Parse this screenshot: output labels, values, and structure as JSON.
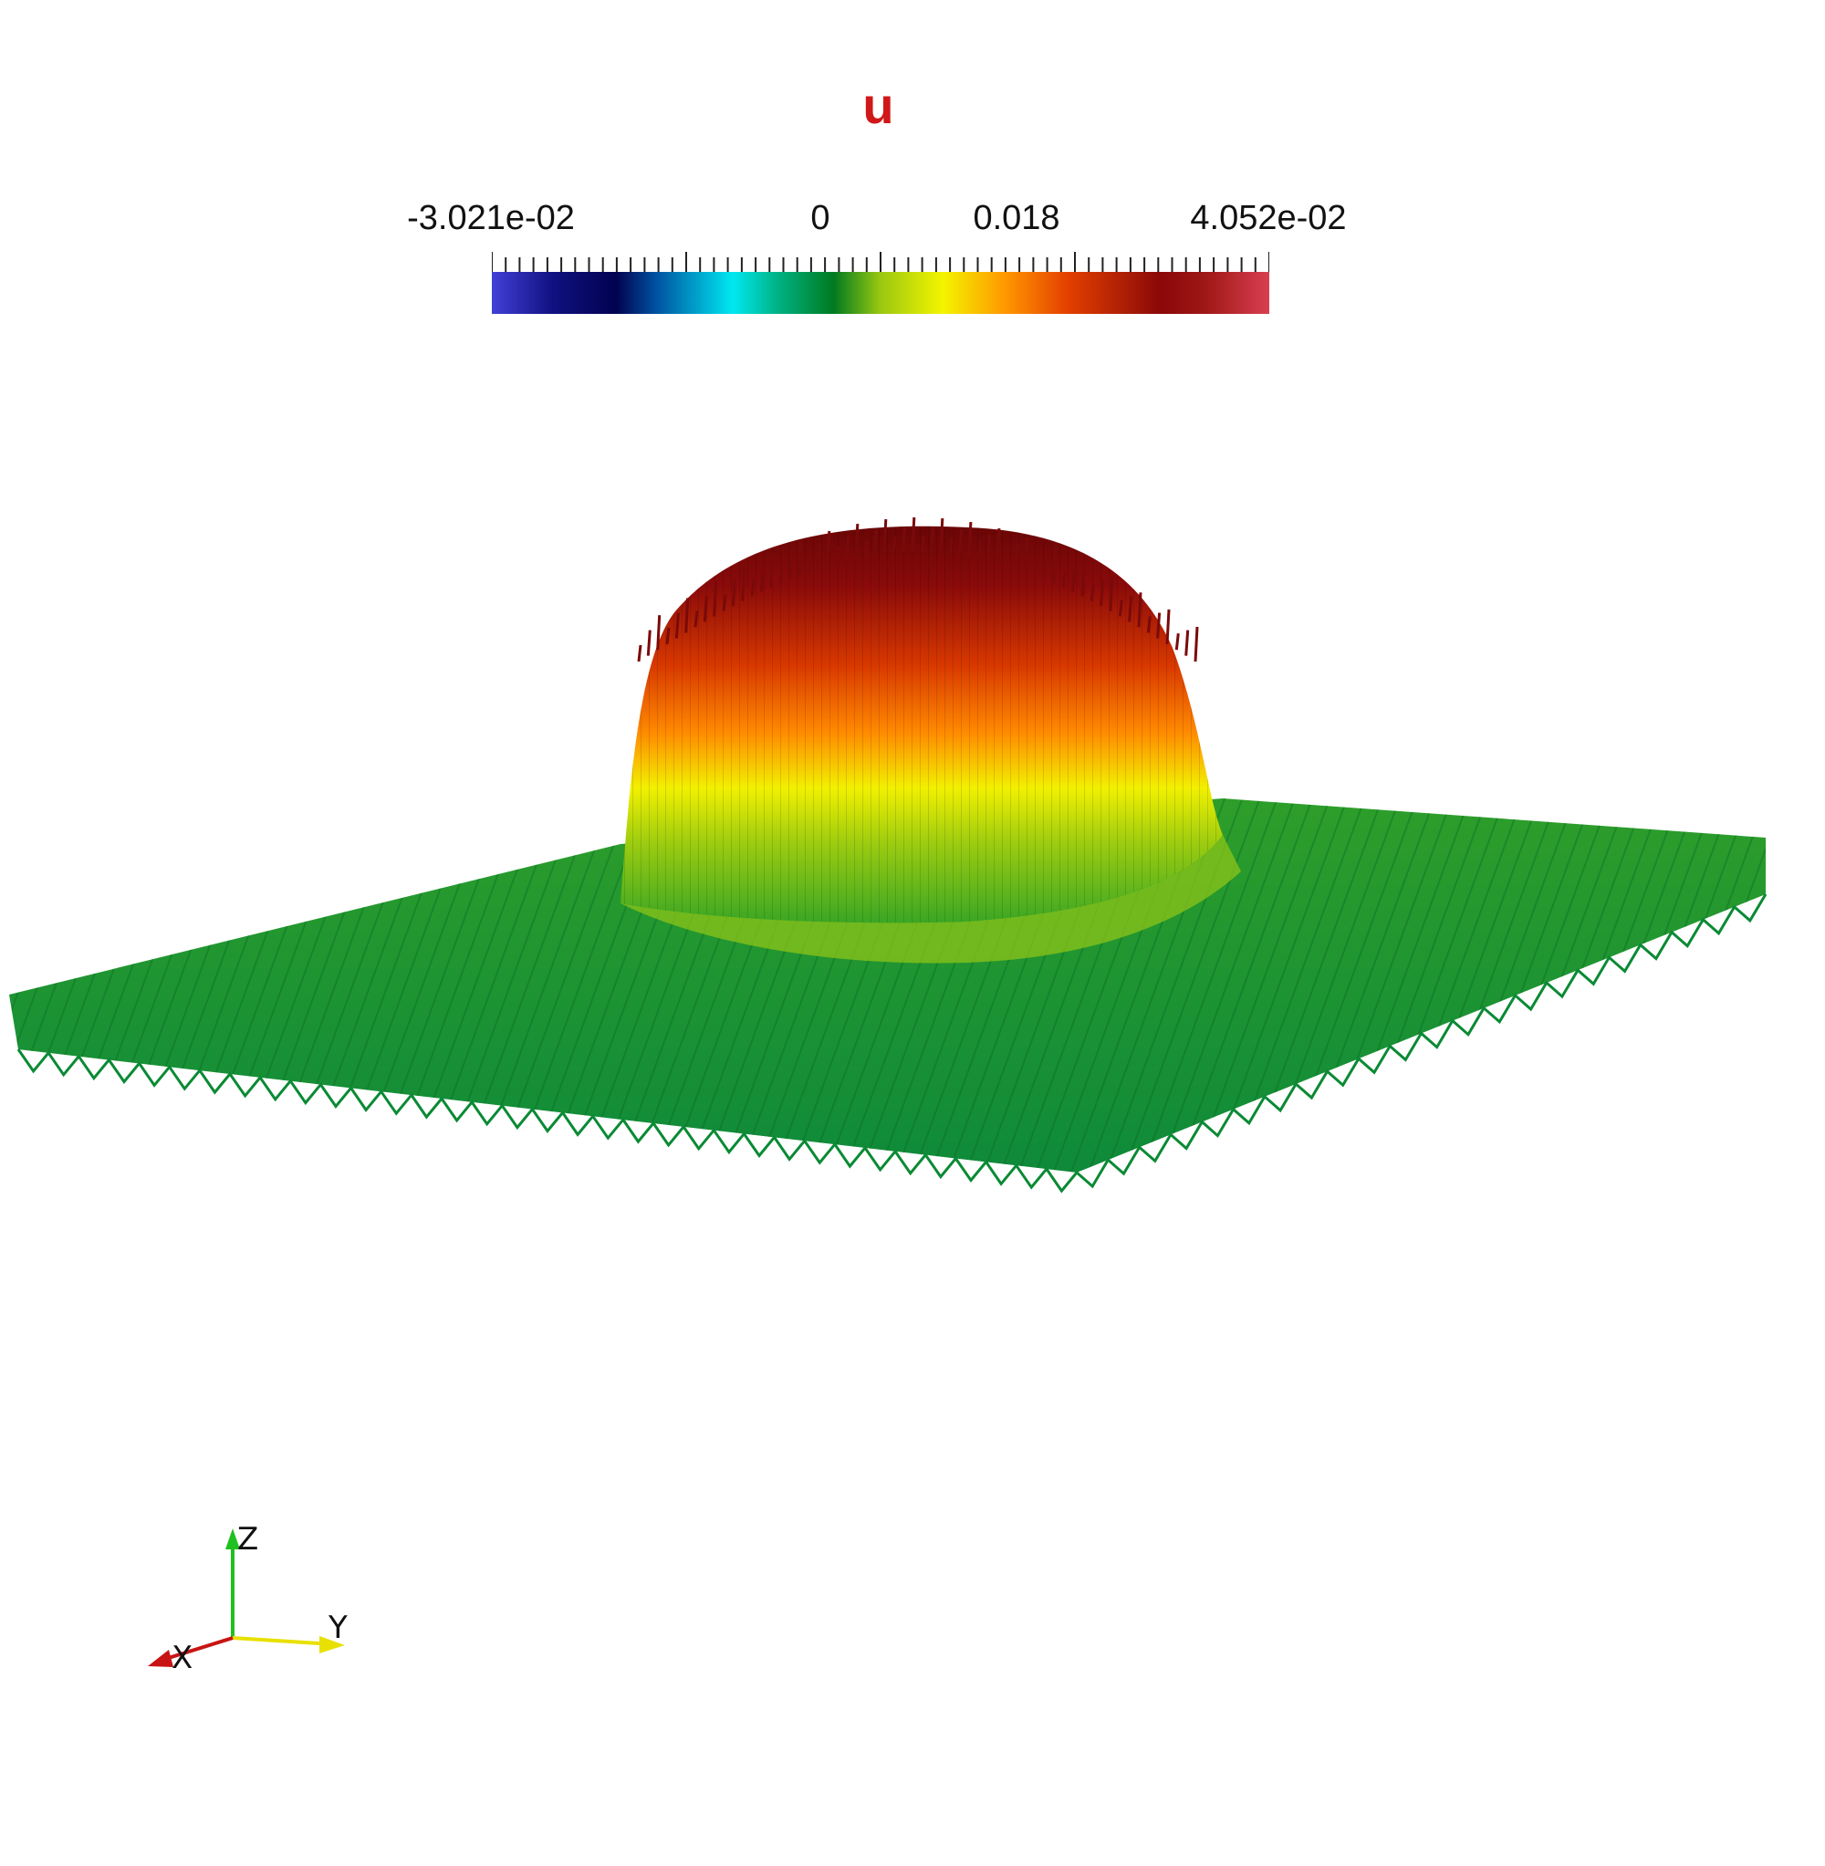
{
  "colorbar": {
    "title": "u",
    "labels": {
      "min": "-3.021e-02",
      "zero": "0",
      "mid": "0.018",
      "max": "4.052e-02"
    },
    "range": [
      -0.03021,
      0.04052
    ],
    "colormap": [
      "#4040d8",
      "#020250",
      "#00e8f0",
      "#007a20",
      "#f4f400",
      "#ff9800",
      "#8a0808",
      "#d84050"
    ]
  },
  "axes_widget": {
    "x_label": "X",
    "y_label": "Y",
    "z_label": "Z",
    "x_color": "#c81414",
    "y_color": "#e8e000",
    "z_color": "#20c020"
  },
  "scene": {
    "background": "#ffffff",
    "surface_base_color": "#1f9a2a",
    "peak_color": "#7a0a0a"
  }
}
